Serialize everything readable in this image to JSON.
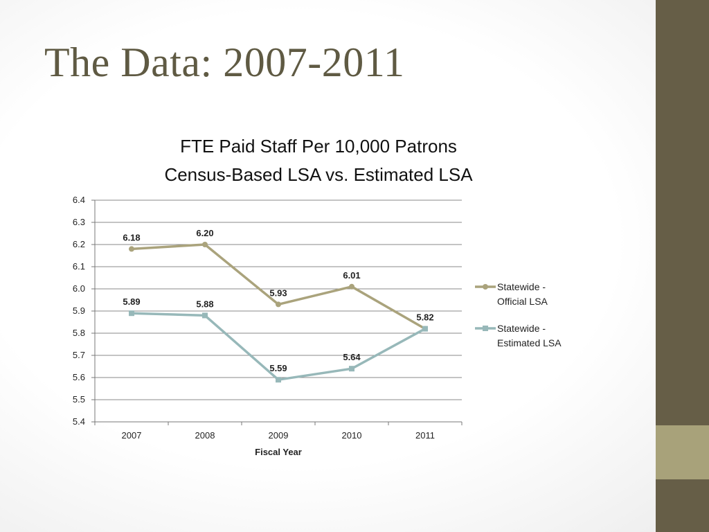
{
  "slide": {
    "title": "The Data: 2007-2011",
    "accent_colors": {
      "sidebar_dark": "#665e47",
      "sidebar_light": "#a8a27a"
    }
  },
  "chart_data": {
    "type": "line",
    "title_lines": [
      "FTE Paid Staff Per 10,000 Patrons",
      "Census-Based LSA vs. Estimated LSA"
    ],
    "xlabel": "Fiscal Year",
    "ylabel": "",
    "categories": [
      "2007",
      "2008",
      "2009",
      "2010",
      "2011"
    ],
    "ylim": [
      5.4,
      6.4
    ],
    "yticks": [
      "6.4",
      "6.3",
      "6.2",
      "6.1",
      "6.0",
      "5.9",
      "5.8",
      "5.7",
      "5.6",
      "5.5",
      "5.4"
    ],
    "grid": true,
    "legend_position": "right",
    "series": [
      {
        "legend": [
          "Statewide -",
          "Official LSA"
        ],
        "values": [
          6.18,
          6.2,
          5.93,
          6.01,
          5.82
        ],
        "labels": [
          "6.18",
          "6.20",
          "5.93",
          "6.01",
          "5.82"
        ],
        "color": "#aaa37c",
        "marker": "circle"
      },
      {
        "legend": [
          "Statewide -",
          "Estimated LSA"
        ],
        "values": [
          5.89,
          5.88,
          5.59,
          5.64,
          5.82
        ],
        "labels": [
          "5.89",
          "5.88",
          "5.59",
          "5.64",
          ""
        ],
        "color": "#97b8b9",
        "marker": "square"
      }
    ]
  }
}
